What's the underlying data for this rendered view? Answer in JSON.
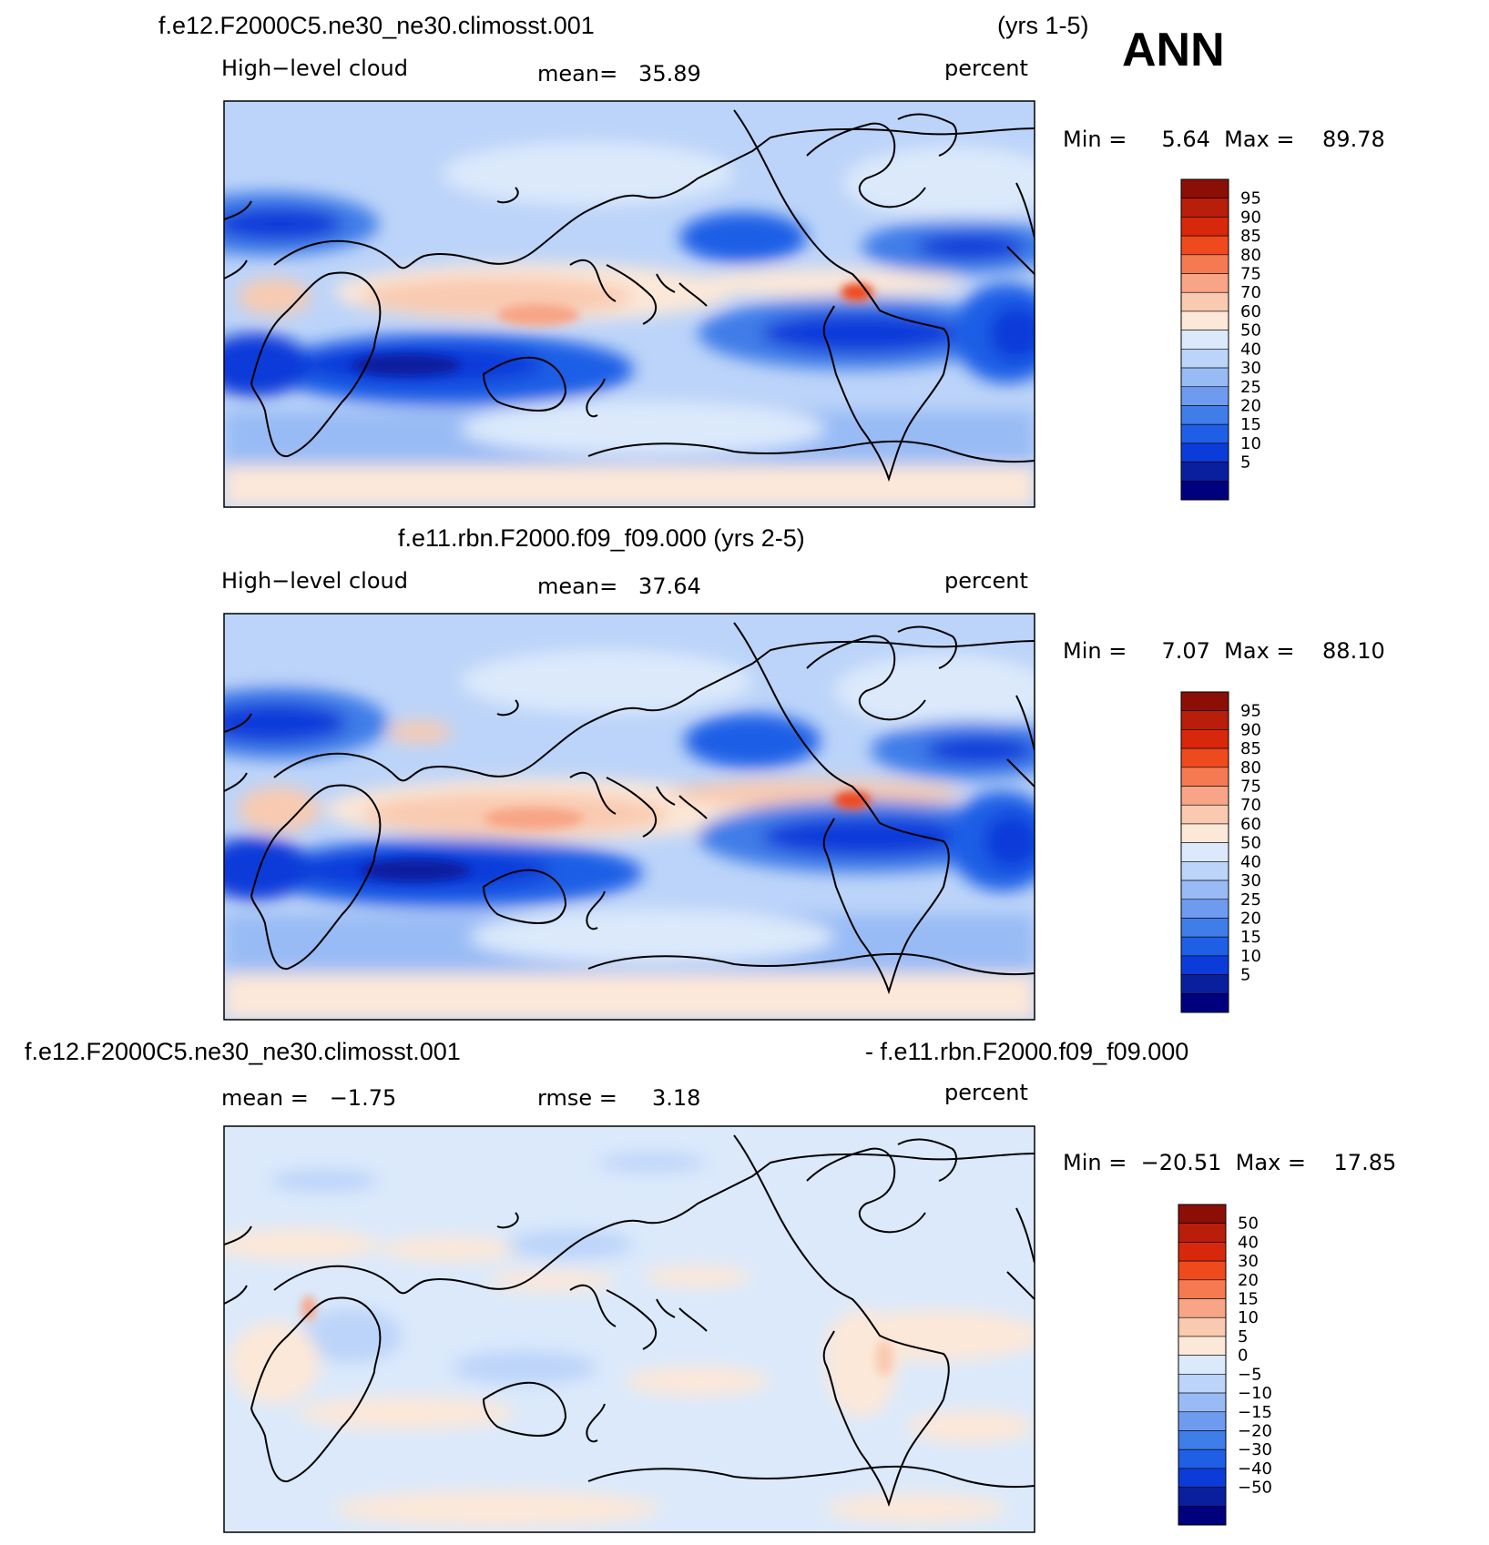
{
  "season": "ANN",
  "colors": {
    "seq": [
      "#00007f",
      "#0a1f9e",
      "#0b3bd9",
      "#1f5fe6",
      "#3f7de8",
      "#6e9bef",
      "#99bbf5",
      "#bcd4f9",
      "#dbe9fb",
      "#fce8d8",
      "#f9cab0",
      "#f8a486",
      "#f57a52",
      "#ef4a1d",
      "#d8280c",
      "#b81e09",
      "#8b0f06"
    ],
    "coast": "#000000",
    "frame": "#000000"
  },
  "panels": [
    {
      "case_title": "f.e12.F2000C5.ne30_ne30.climosst.001",
      "years": "(yrs 1-5)",
      "variable": "High−level cloud",
      "stat1": "mean=   35.89",
      "units": "percent",
      "minmax": "Min =     5.64  Max =    89.78",
      "levels": [
        "95",
        "90",
        "85",
        "80",
        "75",
        "70",
        "60",
        "50",
        "40",
        "30",
        "25",
        "20",
        "15",
        "10",
        "5"
      ]
    },
    {
      "case_title": "f.e11.rbn.F2000.f09_f09.000 (yrs 2-5)",
      "variable": "High−level cloud",
      "stat1": "mean=   37.64",
      "units": "percent",
      "minmax": "Min =     7.07  Max =    88.10",
      "levels": [
        "95",
        "90",
        "85",
        "80",
        "75",
        "70",
        "60",
        "50",
        "40",
        "30",
        "25",
        "20",
        "15",
        "10",
        "5"
      ]
    },
    {
      "case_title": "f.e12.F2000C5.ne30_ne30.climosst.001",
      "case_title2": "- f.e11.rbn.F2000.f09_f09.000",
      "stat1": "mean =   −1.75",
      "stat2": "rmse =     3.18",
      "units": "percent",
      "minmax": "Min =  −20.51  Max =    17.85",
      "levels": [
        "50",
        "40",
        "30",
        "20",
        "15",
        "10",
        "5",
        "0",
        "−5",
        "−10",
        "−15",
        "−20",
        "−30",
        "−40",
        "−50"
      ]
    }
  ],
  "chart_data": [
    {
      "type": "heatmap",
      "title": "f.e12.F2000C5.ne30_ne30.climosst.001 (yrs 1-5)",
      "variable": "High-level cloud",
      "units": "percent",
      "mean": 35.89,
      "min": 5.64,
      "max": 89.78,
      "contour_levels": [
        5,
        10,
        15,
        20,
        25,
        30,
        40,
        50,
        60,
        70,
        75,
        80,
        85,
        90,
        95
      ],
      "x_range": [
        0,
        360
      ],
      "y_range": [
        -90,
        90
      ]
    },
    {
      "type": "heatmap",
      "title": "f.e11.rbn.F2000.f09_f09.000 (yrs 2-5)",
      "variable": "High-level cloud",
      "units": "percent",
      "mean": 37.64,
      "min": 7.07,
      "max": 88.1,
      "contour_levels": [
        5,
        10,
        15,
        20,
        25,
        30,
        40,
        50,
        60,
        70,
        75,
        80,
        85,
        90,
        95
      ],
      "x_range": [
        0,
        360
      ],
      "y_range": [
        -90,
        90
      ]
    },
    {
      "type": "heatmap",
      "title": "f.e12.F2000C5.ne30_ne30.climosst.001 - f.e11.rbn.F2000.f09_f09.000",
      "units": "percent",
      "mean": -1.75,
      "rmse": 3.18,
      "min": -20.51,
      "max": 17.85,
      "contour_levels": [
        -50,
        -40,
        -30,
        -20,
        -15,
        -10,
        -5,
        0,
        5,
        10,
        15,
        20,
        30,
        40,
        50
      ],
      "x_range": [
        0,
        360
      ],
      "y_range": [
        -90,
        90
      ]
    }
  ]
}
